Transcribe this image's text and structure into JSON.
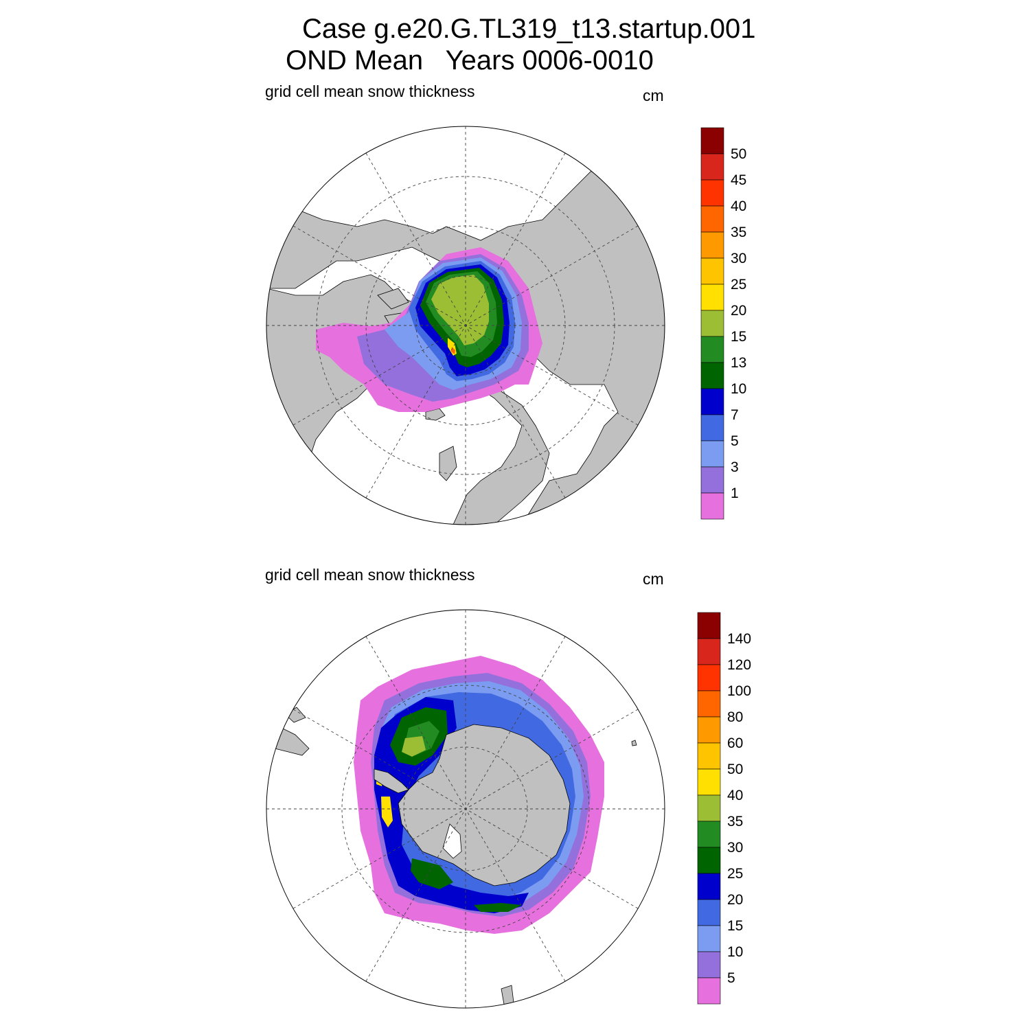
{
  "title": {
    "line1": "Case g.e20.G.TL319_t13.startup.001",
    "line2": "OND Mean   Years 0006-0010"
  },
  "panels": [
    {
      "id": "north",
      "label": "grid cell mean snow thickness",
      "units": "cm",
      "hemisphere": "NH",
      "colorbar": {
        "ticks": [
          "50",
          "45",
          "40",
          "35",
          "30",
          "25",
          "20",
          "15",
          "13",
          "10",
          "7",
          "5",
          "3",
          "1"
        ],
        "colors": [
          "#8b0000",
          "#d9261c",
          "#ff3300",
          "#ff6600",
          "#ff9900",
          "#ffc400",
          "#ffe000",
          "#9cbe34",
          "#228b22",
          "#006400",
          "#0000cd",
          "#4169e1",
          "#7b9cf0",
          "#9370db",
          "#e671de"
        ]
      }
    },
    {
      "id": "south",
      "label": "grid cell mean snow thickness",
      "units": "cm",
      "hemisphere": "SH",
      "colorbar": {
        "ticks": [
          "140",
          "120",
          "100",
          "80",
          "60",
          "50",
          "40",
          "35",
          "30",
          "25",
          "20",
          "15",
          "10",
          "5"
        ],
        "colors": [
          "#8b0000",
          "#d9261c",
          "#ff3300",
          "#ff6600",
          "#ff9900",
          "#ffc400",
          "#ffe000",
          "#9cbe34",
          "#228b22",
          "#006400",
          "#0000cd",
          "#4169e1",
          "#7b9cf0",
          "#9370db",
          "#e671de"
        ]
      }
    }
  ],
  "colors": {
    "land": "#c0c0c0",
    "ocean": "#ffffff",
    "grid": "#444444"
  }
}
